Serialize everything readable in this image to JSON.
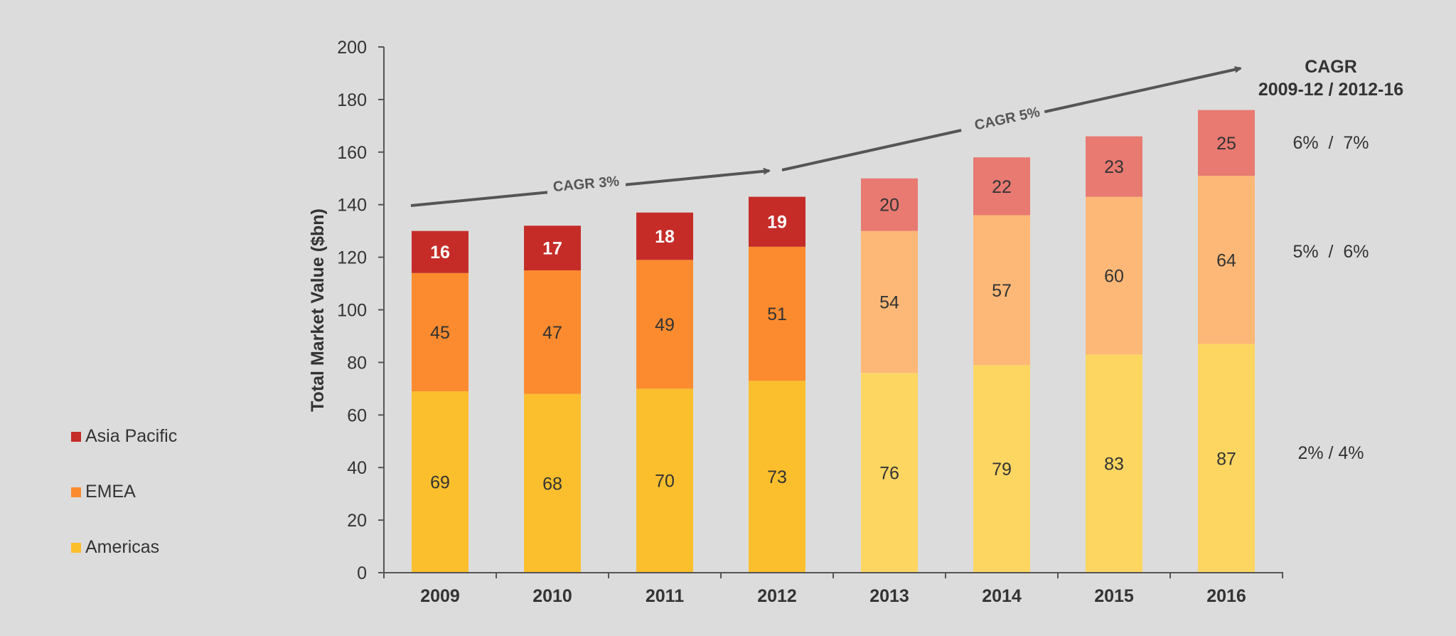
{
  "colors": {
    "americas_hist": "#fbbf2d",
    "americas_fcst": "#fdd662",
    "emea_hist": "#fb8b2e",
    "emea_fcst": "#fdb877",
    "apac_hist": "#c52c28",
    "apac_fcst": "#e87a72",
    "axis": "#555555",
    "arrow": "#555555"
  },
  "legend": {
    "items": [
      {
        "label": "Asia Pacific"
      },
      {
        "label": "EMEA"
      },
      {
        "label": "Americas"
      }
    ]
  },
  "chart_data": {
    "type": "bar",
    "stacked": true,
    "categories": [
      "2009",
      "2010",
      "2011",
      "2012",
      "2013",
      "2014",
      "2015",
      "2016"
    ],
    "forecast_from": "2013",
    "series": [
      {
        "name": "Americas",
        "values": [
          69,
          68,
          70,
          73,
          76,
          79,
          83,
          87
        ]
      },
      {
        "name": "EMEA",
        "values": [
          45,
          47,
          49,
          51,
          54,
          57,
          60,
          64
        ]
      },
      {
        "name": "Asia Pacific",
        "values": [
          16,
          17,
          18,
          19,
          20,
          22,
          23,
          25
        ]
      }
    ],
    "ylabel": "Total Market Value ($bn)",
    "ylim": [
      0,
      200
    ],
    "yticks": [
      0,
      20,
      40,
      60,
      80,
      100,
      120,
      140,
      160,
      180,
      200
    ],
    "grid": false,
    "legend_position": "left",
    "annotations": {
      "cagr_1": "CAGR 3%",
      "cagr_2": "CAGR 5%",
      "cagr_header_line1": "CAGR",
      "cagr_header_line2": "2009-12 / 2012-16",
      "cagr_apac": "6%  /  7%",
      "cagr_emea": "5%  /  6%",
      "cagr_americas": "2% / 4%"
    }
  }
}
